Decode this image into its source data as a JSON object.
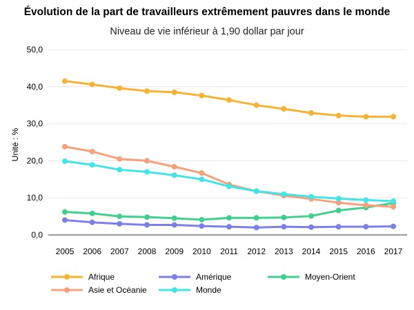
{
  "chart_data": {
    "type": "line",
    "title": "Évolution de la part de travailleurs extrêmement pauvres dans le monde",
    "subtitle": "Niveau de vie inférieur à 1,90 dollar par jour",
    "ylabel": "Unité : %",
    "xlabel": "",
    "ylim": [
      0,
      50
    ],
    "yticks": [
      "0,0",
      "10,0",
      "20,0",
      "30,0",
      "40,0",
      "50,0"
    ],
    "grid": true,
    "legend_position": "bottom",
    "categories": [
      "2005",
      "2006",
      "2007",
      "2008",
      "2009",
      "2010",
      "2011",
      "2012",
      "2013",
      "2014",
      "2015",
      "2016",
      "2017"
    ],
    "series": [
      {
        "name": "Afrique",
        "color": "#F7B231",
        "values": [
          41.5,
          40.6,
          39.6,
          38.8,
          38.5,
          37.6,
          36.4,
          35.0,
          34.0,
          32.9,
          32.2,
          31.9,
          31.9
        ]
      },
      {
        "name": "Amérique",
        "color": "#7B7FE8",
        "values": [
          4.0,
          3.4,
          3.0,
          2.7,
          2.7,
          2.4,
          2.2,
          2.0,
          2.2,
          2.1,
          2.2,
          2.2,
          2.3
        ]
      },
      {
        "name": "Moyen-Orient",
        "color": "#3ED08C",
        "values": [
          6.2,
          5.8,
          5.0,
          4.8,
          4.5,
          4.1,
          4.6,
          4.6,
          4.7,
          5.1,
          6.6,
          7.4,
          8.6
        ]
      },
      {
        "name": "Asie et Océanie",
        "color": "#F7A07A",
        "values": [
          23.8,
          22.5,
          20.5,
          20.0,
          18.4,
          16.7,
          13.6,
          11.8,
          10.6,
          9.7,
          8.7,
          8.0,
          7.6
        ]
      },
      {
        "name": "Monde",
        "color": "#3FE6E6",
        "values": [
          19.9,
          18.9,
          17.6,
          17.0,
          16.1,
          15.0,
          13.1,
          11.8,
          11.0,
          10.3,
          9.8,
          9.4,
          9.1
        ]
      }
    ]
  }
}
